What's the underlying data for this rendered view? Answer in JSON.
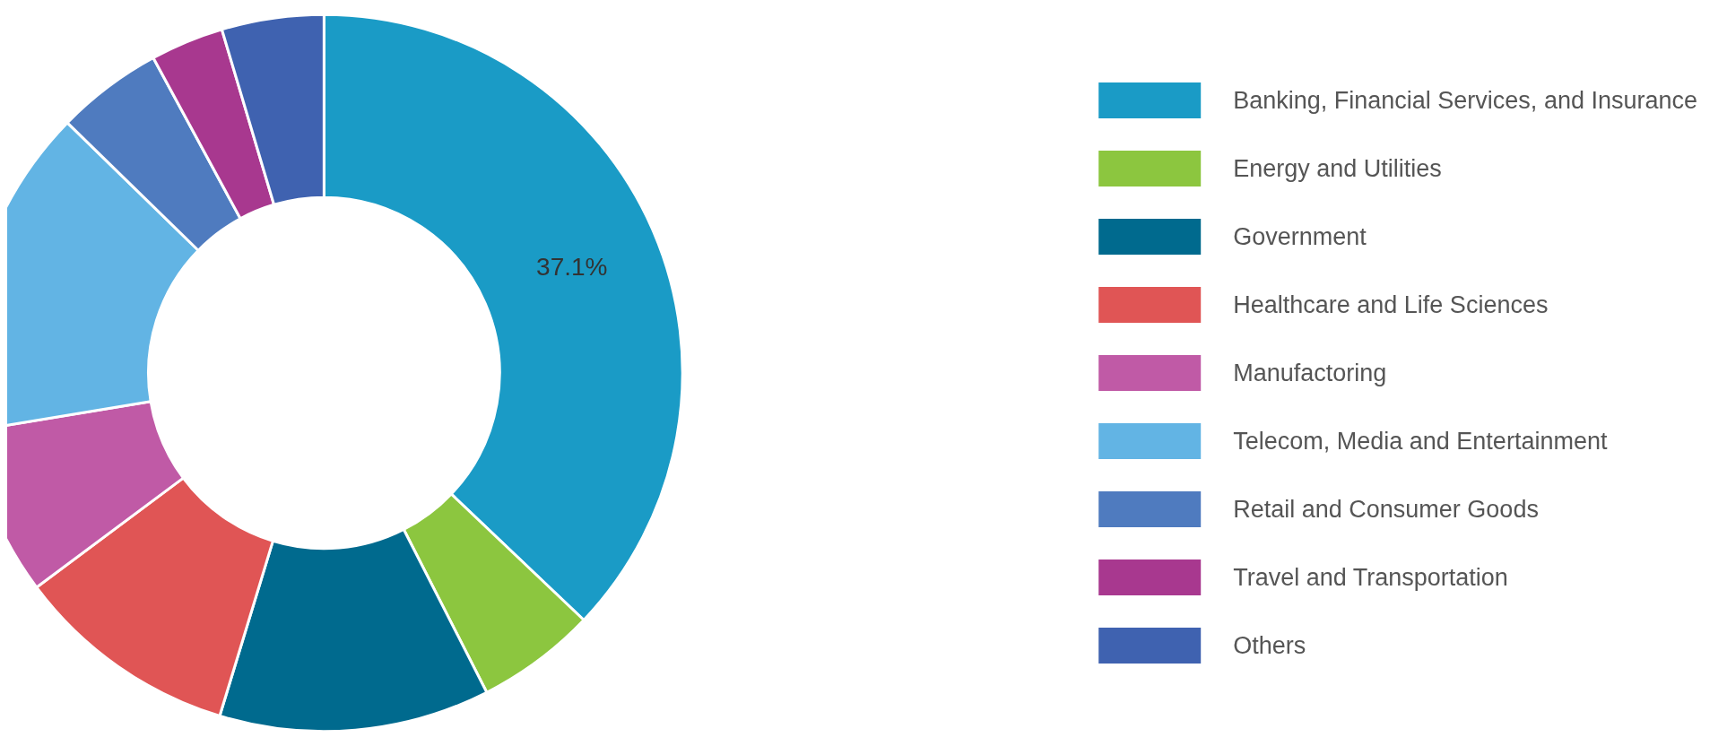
{
  "chart_data": {
    "type": "donut",
    "categories": [
      "Banking, Financial Services, and Insurance",
      "Energy and Utilities",
      "Government",
      "Healthcare and Life Sciences",
      "Manufactoring",
      "Telecom, Media and Entertainment",
      "Retail and Consumer Goods",
      "Travel and Transportation",
      "Others"
    ],
    "values": [
      37.1,
      5.4,
      12.2,
      10.1,
      7.6,
      14.9,
      4.8,
      3.3,
      4.6
    ],
    "colors": [
      "#1a9bc6",
      "#8cc63f",
      "#006a8e",
      "#e05555",
      "#c05aa6",
      "#62b4e4",
      "#4f7bbf",
      "#a8388f",
      "#3f62b0"
    ],
    "value_labels": [
      "37.1%",
      null,
      null,
      null,
      null,
      null,
      null,
      null,
      null
    ],
    "legend": "right"
  }
}
